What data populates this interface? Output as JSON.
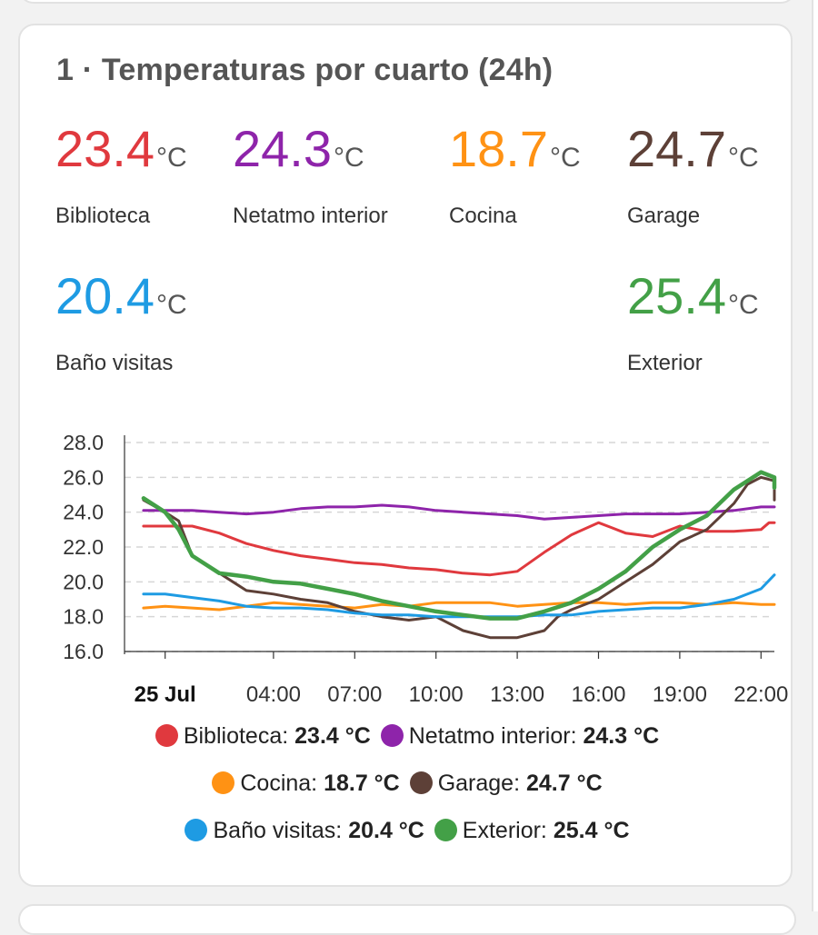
{
  "card": {
    "title": "1 · Temperaturas por cuarto (24h)"
  },
  "readings": [
    {
      "value": "23.4",
      "unit": "°C",
      "name": "Biblioteca",
      "color": "#e0393e"
    },
    {
      "value": "24.3",
      "unit": "°C",
      "name": "Netatmo interior",
      "color": "#8e24aa"
    },
    {
      "value": "18.7",
      "unit": "°C",
      "name": "Cocina",
      "color": "#ff9214"
    },
    {
      "value": "24.7",
      "unit": "°C",
      "name": "Garage",
      "color": "#5d4037"
    },
    {
      "value": "20.4",
      "unit": "°C",
      "name": "Baño visitas",
      "color": "#1e9be3"
    },
    {
      "value": "25.4",
      "unit": "°C",
      "name": "Exterior",
      "color": "#43a047"
    }
  ],
  "legend": [
    {
      "label": "Biblioteca:",
      "value": "23.4 °C",
      "color": "#e0393e"
    },
    {
      "label": "Netatmo interior:",
      "value": "24.3 °C",
      "color": "#8e24aa"
    },
    {
      "label": "Cocina:",
      "value": "18.7 °C",
      "color": "#ff9214"
    },
    {
      "label": "Garage:",
      "value": "24.7 °C",
      "color": "#5d4037"
    },
    {
      "label": "Baño visitas:",
      "value": "20.4 °C",
      "color": "#1e9be3"
    },
    {
      "label": "Exterior:",
      "value": "25.4 °C",
      "color": "#43a047"
    }
  ],
  "chart_data": {
    "type": "line",
    "ylim": [
      16,
      28
    ],
    "yticks": [
      "16.0",
      "18.0",
      "20.0",
      "22.0",
      "24.0",
      "26.0",
      "28.0"
    ],
    "xlim": [
      0.0,
      23.3
    ],
    "xticks": [
      {
        "label": "25 Jul",
        "hour": 0,
        "bold": true
      },
      {
        "label": "04:00",
        "hour": 4
      },
      {
        "label": "07:00",
        "hour": 7
      },
      {
        "label": "10:00",
        "hour": 10
      },
      {
        "label": "13:00",
        "hour": 13
      },
      {
        "label": "16:00",
        "hour": 16
      },
      {
        "label": "19:00",
        "hour": 19
      },
      {
        "label": "22:00",
        "hour": 22
      }
    ],
    "grid": true,
    "legend_position": "bottom",
    "series": [
      {
        "name": "Biblioteca",
        "color": "#e0393e",
        "x": [
          -0.8,
          0.5,
          1.0,
          2.0,
          3.0,
          4.0,
          5.0,
          6.0,
          7.0,
          8.0,
          9.0,
          10.0,
          11.0,
          12.0,
          13.0,
          14.0,
          15.0,
          16.0,
          16.5,
          17.0,
          18.0,
          19.0,
          20.0,
          21.0,
          22.0,
          22.3,
          23.3
        ],
        "y": [
          23.2,
          23.2,
          23.2,
          22.8,
          22.2,
          21.8,
          21.5,
          21.3,
          21.1,
          21.0,
          20.8,
          20.7,
          20.5,
          20.4,
          20.6,
          21.7,
          22.7,
          23.4,
          23.1,
          22.8,
          22.6,
          23.2,
          22.9,
          22.9,
          23.0,
          23.4,
          23.4
        ]
      },
      {
        "name": "Netatmo interior",
        "color": "#8e24aa",
        "x": [
          -0.8,
          1.0,
          2.0,
          3.0,
          4.0,
          5.0,
          6.0,
          7.0,
          8.0,
          9.0,
          10.0,
          11.0,
          12.0,
          13.0,
          14.0,
          15.0,
          16.0,
          17.0,
          18.0,
          19.0,
          20.0,
          21.0,
          22.0,
          23.3
        ],
        "y": [
          24.1,
          24.1,
          24.0,
          23.9,
          24.0,
          24.2,
          24.3,
          24.3,
          24.4,
          24.3,
          24.1,
          24.0,
          23.9,
          23.8,
          23.6,
          23.7,
          23.8,
          23.9,
          23.9,
          23.9,
          24.0,
          24.1,
          24.3,
          24.3
        ]
      },
      {
        "name": "Cocina",
        "color": "#ff9214",
        "x": [
          -0.8,
          0,
          1,
          2,
          3,
          4,
          5,
          6,
          7,
          8,
          9,
          10,
          11,
          12,
          13,
          14,
          15,
          16,
          17,
          18,
          19,
          20,
          21,
          22,
          23.3
        ],
        "y": [
          18.5,
          18.6,
          18.5,
          18.4,
          18.6,
          18.8,
          18.7,
          18.6,
          18.5,
          18.7,
          18.6,
          18.8,
          18.8,
          18.8,
          18.6,
          18.7,
          18.8,
          18.8,
          18.7,
          18.8,
          18.8,
          18.7,
          18.8,
          18.7,
          18.7
        ]
      },
      {
        "name": "Garage",
        "color": "#5d4037",
        "x": [
          -0.8,
          0.0,
          0.5,
          1.0,
          2.0,
          3.0,
          4.0,
          5.0,
          6.0,
          7.0,
          8.0,
          9.0,
          10.0,
          11.0,
          12.0,
          13.0,
          14.0,
          14.5,
          15.0,
          16.0,
          17.0,
          18.0,
          19.0,
          20.0,
          21.0,
          21.5,
          22.0,
          22.5,
          23.0,
          23.3
        ],
        "y": [
          24.7,
          24.0,
          23.5,
          21.5,
          20.5,
          19.5,
          19.3,
          19.0,
          18.8,
          18.3,
          18.0,
          17.8,
          18.0,
          17.2,
          16.8,
          16.8,
          17.2,
          18.0,
          18.4,
          19.0,
          20.0,
          21.0,
          22.3,
          23.0,
          24.5,
          25.6,
          26.0,
          25.8,
          25.2,
          24.7
        ]
      },
      {
        "name": "Baño visitas",
        "color": "#1e9be3",
        "x": [
          -0.8,
          0.0,
          1.0,
          2.0,
          3.0,
          4.0,
          5.0,
          6.0,
          7.0,
          8.0,
          9.0,
          10.0,
          11.0,
          12.0,
          13.0,
          14.0,
          15.0,
          16.0,
          17.0,
          18.0,
          19.0,
          20.0,
          21.0,
          22.0,
          22.5,
          23.3
        ],
        "y": [
          19.3,
          19.3,
          19.1,
          18.9,
          18.6,
          18.5,
          18.5,
          18.4,
          18.2,
          18.1,
          18.1,
          18.0,
          18.0,
          18.0,
          18.0,
          18.1,
          18.1,
          18.3,
          18.4,
          18.5,
          18.5,
          18.7,
          19.0,
          19.6,
          20.4,
          20.4
        ]
      },
      {
        "name": "Exterior",
        "color": "#43a047",
        "x": [
          -0.8,
          0.0,
          0.5,
          1.0,
          2.0,
          3.0,
          4.0,
          5.0,
          6.0,
          7.0,
          8.0,
          9.0,
          10.0,
          11.0,
          12.0,
          13.0,
          14.0,
          15.0,
          16.0,
          17.0,
          18.0,
          19.0,
          20.0,
          21.0,
          22.0,
          22.5,
          23.0,
          23.3
        ],
        "y": [
          24.8,
          24.0,
          23.0,
          21.5,
          20.5,
          20.3,
          20.0,
          19.9,
          19.6,
          19.3,
          18.9,
          18.6,
          18.3,
          18.1,
          17.9,
          17.9,
          18.3,
          18.8,
          19.6,
          20.6,
          22.0,
          23.0,
          23.8,
          25.3,
          26.3,
          26.0,
          25.4,
          25.4
        ]
      }
    ]
  }
}
